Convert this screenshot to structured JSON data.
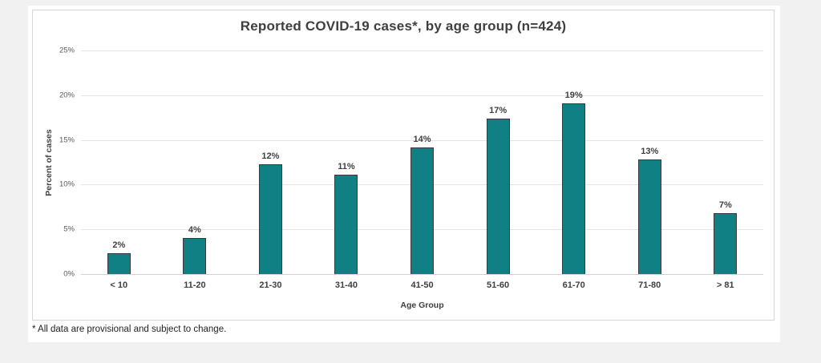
{
  "page": {
    "background_color": "#f1f1f2",
    "panel_color": "#ffffff",
    "card_border_color": "#d6d6d6"
  },
  "chart": {
    "footnote": "* All data are provisional and subject to change."
  },
  "chart_data": {
    "type": "bar",
    "title": "Reported COVID-19 cases*, by age group (n=424)",
    "xlabel": "Age Group",
    "ylabel": "Percent of cases",
    "categories": [
      "< 10",
      "11-20",
      "21-30",
      "31-40",
      "41-50",
      "51-60",
      "61-70",
      "71-80",
      "> 81"
    ],
    "values": [
      2.3,
      4.0,
      12.3,
      11.1,
      14.2,
      17.4,
      19.1,
      12.8,
      6.8
    ],
    "value_labels": [
      "2%",
      "4%",
      "12%",
      "11%",
      "14%",
      "17%",
      "19%",
      "13%",
      "7%"
    ],
    "ylim": [
      0,
      25
    ],
    "y_ticks_percent": [
      25,
      20,
      15,
      10,
      5,
      0
    ],
    "y_tick_labels": [
      "25%",
      "20%",
      "15%",
      "10%",
      "5%",
      "0%"
    ],
    "grid": true,
    "legend": false,
    "bar_color": "#118084",
    "bar_border_color": "#3a3a3a",
    "gridline_color": "#e4e4e4",
    "axis_line_color": "#d2d2d2",
    "title_color": "#3f3f3f",
    "tick_label_color": "#595959"
  }
}
